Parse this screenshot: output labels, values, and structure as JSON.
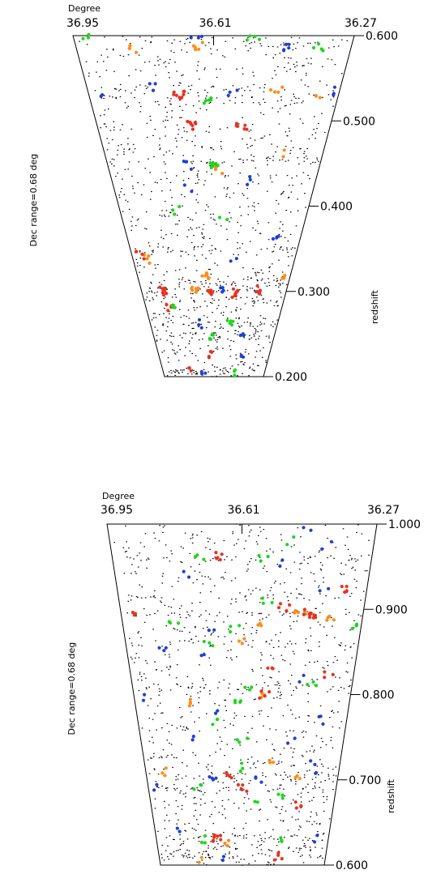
{
  "chart_data": [
    {
      "type": "scatter",
      "plot": "cone-top",
      "ra_axis_title": "Degree",
      "ra_ticks": [
        "36.95",
        "36.61",
        "36.27"
      ],
      "redshift_axis_title": "redshift",
      "dec_note": "Dec range=0.68 deg",
      "redshift_range": [
        0.2,
        0.6
      ],
      "redshift_ticks": [
        {
          "value": 0.6,
          "label": "0.600"
        },
        {
          "value": 0.5,
          "label": "0.500"
        },
        {
          "value": 0.4,
          "label": "0.400"
        },
        {
          "value": 0.3,
          "label": "0.300"
        },
        {
          "value": 0.2,
          "label": "0.200"
        }
      ],
      "series_colors": {
        "background": "#000000",
        "blue": "#1f3fd6",
        "green": "#1ed61e",
        "orange": "#ff8c1a",
        "red": "#e8321e"
      },
      "groups": [
        {
          "color": "green",
          "z": 0.597,
          "u": 0.05,
          "n": 3
        },
        {
          "color": "orange",
          "z": 0.585,
          "u": 0.2,
          "n": 4
        },
        {
          "color": "blue",
          "z": 0.596,
          "u": 0.44,
          "n": 3
        },
        {
          "color": "orange",
          "z": 0.588,
          "u": 0.44,
          "n": 5
        },
        {
          "color": "green",
          "z": 0.596,
          "u": 0.64,
          "n": 4
        },
        {
          "color": "blue",
          "z": 0.585,
          "u": 0.76,
          "n": 5
        },
        {
          "color": "green",
          "z": 0.587,
          "u": 0.88,
          "n": 4
        },
        {
          "color": "blue",
          "z": 0.54,
          "u": 0.25,
          "n": 3
        },
        {
          "color": "red",
          "z": 0.53,
          "u": 0.36,
          "n": 9
        },
        {
          "color": "green",
          "z": 0.525,
          "u": 0.48,
          "n": 5
        },
        {
          "color": "blue",
          "z": 0.532,
          "u": 0.57,
          "n": 3
        },
        {
          "color": "orange",
          "z": 0.535,
          "u": 0.75,
          "n": 4
        },
        {
          "color": "orange",
          "z": 0.53,
          "u": 0.91,
          "n": 3
        },
        {
          "color": "blue",
          "z": 0.535,
          "u": 0.97,
          "n": 3
        },
        {
          "color": "blue",
          "z": 0.527,
          "u": 0.05,
          "n": 2
        },
        {
          "color": "red",
          "z": 0.495,
          "u": 0.41,
          "n": 8
        },
        {
          "color": "red",
          "z": 0.492,
          "u": 0.62,
          "n": 6
        },
        {
          "color": "green",
          "z": 0.45,
          "u": 0.5,
          "n": 11
        },
        {
          "color": "blue",
          "z": 0.448,
          "u": 0.38,
          "n": 3
        },
        {
          "color": "orange",
          "z": 0.442,
          "u": 0.52,
          "n": 3
        },
        {
          "color": "orange",
          "z": 0.462,
          "u": 0.8,
          "n": 2
        },
        {
          "color": "blue",
          "z": 0.42,
          "u": 0.38,
          "n": 2
        },
        {
          "color": "blue",
          "z": 0.43,
          "u": 0.66,
          "n": 3
        },
        {
          "color": "green",
          "z": 0.395,
          "u": 0.3,
          "n": 3
        },
        {
          "color": "green",
          "z": 0.385,
          "u": 0.55,
          "n": 2
        },
        {
          "color": "blue",
          "z": 0.36,
          "u": 0.85,
          "n": 3
        },
        {
          "color": "orange",
          "z": 0.338,
          "u": 0.1,
          "n": 4
        },
        {
          "color": "red",
          "z": 0.342,
          "u": 0.05,
          "n": 4
        },
        {
          "color": "blue",
          "z": 0.338,
          "u": 0.62,
          "n": 2
        },
        {
          "color": "orange",
          "z": 0.318,
          "u": 0.44,
          "n": 6
        },
        {
          "color": "orange",
          "z": 0.318,
          "u": 0.94,
          "n": 3
        },
        {
          "color": "red",
          "z": 0.3,
          "u": 0.15,
          "n": 9
        },
        {
          "color": "orange",
          "z": 0.302,
          "u": 0.37,
          "n": 8
        },
        {
          "color": "red",
          "z": 0.3,
          "u": 0.47,
          "n": 6
        },
        {
          "color": "red",
          "z": 0.298,
          "u": 0.65,
          "n": 8
        },
        {
          "color": "red",
          "z": 0.302,
          "u": 0.82,
          "n": 5
        },
        {
          "color": "blue",
          "z": 0.3,
          "u": 0.57,
          "n": 4
        },
        {
          "color": "red",
          "z": 0.282,
          "u": 0.18,
          "n": 4
        },
        {
          "color": "green",
          "z": 0.285,
          "u": 0.2,
          "n": 4
        },
        {
          "color": "green",
          "z": 0.265,
          "u": 0.63,
          "n": 5
        },
        {
          "color": "blue",
          "z": 0.262,
          "u": 0.4,
          "n": 3
        },
        {
          "color": "green",
          "z": 0.248,
          "u": 0.47,
          "n": 5
        },
        {
          "color": "blue",
          "z": 0.247,
          "u": 0.72,
          "n": 3
        },
        {
          "color": "red",
          "z": 0.225,
          "u": 0.46,
          "n": 4
        },
        {
          "color": "blue",
          "z": 0.225,
          "u": 0.75,
          "n": 3
        },
        {
          "color": "red",
          "z": 0.21,
          "u": 0.25,
          "n": 3
        },
        {
          "color": "green",
          "z": 0.205,
          "u": 0.7,
          "n": 4
        },
        {
          "color": "blue",
          "z": 0.205,
          "u": 0.4,
          "n": 3
        }
      ],
      "dot_bands": [
        0.595,
        0.54,
        0.525,
        0.455,
        0.35,
        0.31,
        0.302,
        0.29,
        0.262,
        0.248,
        0.205
      ]
    },
    {
      "type": "scatter",
      "plot": "cone-bottom",
      "ra_axis_title": "Degree",
      "ra_ticks": [
        "36.95",
        "36.61",
        "36.27"
      ],
      "redshift_axis_title": "redshift",
      "dec_note": "Dec range=0.68 deg",
      "redshift_range": [
        0.6,
        1.0
      ],
      "redshift_ticks": [
        {
          "value": 1.0,
          "label": "1.000"
        },
        {
          "value": 0.9,
          "label": "0.900"
        },
        {
          "value": 0.8,
          "label": "0.800"
        },
        {
          "value": 0.7,
          "label": "0.700"
        },
        {
          "value": 0.6,
          "label": "0.600"
        }
      ],
      "series_colors": {
        "background": "#000000",
        "blue": "#1f3fd6",
        "green": "#1ed61e",
        "orange": "#ff8c1a",
        "red": "#e8321e"
      },
      "groups": [
        {
          "color": "blue",
          "z": 0.995,
          "u": 0.74,
          "n": 2
        },
        {
          "color": "green",
          "z": 0.98,
          "u": 0.68,
          "n": 2
        },
        {
          "color": "blue",
          "z": 0.975,
          "u": 0.83,
          "n": 2
        },
        {
          "color": "green",
          "z": 0.96,
          "u": 0.34,
          "n": 3
        },
        {
          "color": "red",
          "z": 0.962,
          "u": 0.41,
          "n": 5
        },
        {
          "color": "green",
          "z": 0.96,
          "u": 0.58,
          "n": 3
        },
        {
          "color": "blue",
          "z": 0.955,
          "u": 0.65,
          "n": 2
        },
        {
          "color": "blue",
          "z": 0.94,
          "u": 0.28,
          "n": 2
        },
        {
          "color": "red",
          "z": 0.922,
          "u": 0.92,
          "n": 5
        },
        {
          "color": "blue",
          "z": 0.92,
          "u": 0.83,
          "n": 2
        },
        {
          "color": "green",
          "z": 0.912,
          "u": 0.6,
          "n": 3
        },
        {
          "color": "red",
          "z": 0.902,
          "u": 0.67,
          "n": 4
        },
        {
          "color": "red",
          "z": 0.895,
          "u": 0.05,
          "n": 4
        },
        {
          "color": "orange",
          "z": 0.898,
          "u": 0.74,
          "n": 5
        },
        {
          "color": "red",
          "z": 0.895,
          "u": 0.78,
          "n": 12
        },
        {
          "color": "orange",
          "z": 0.89,
          "u": 0.87,
          "n": 4
        },
        {
          "color": "green",
          "z": 0.885,
          "u": 0.21,
          "n": 3
        },
        {
          "color": "blue",
          "z": 0.88,
          "u": 0.37,
          "n": 2
        },
        {
          "color": "green",
          "z": 0.878,
          "u": 0.47,
          "n": 3
        },
        {
          "color": "orange",
          "z": 0.885,
          "u": 0.58,
          "n": 3
        },
        {
          "color": "green",
          "z": 0.88,
          "u": 0.98,
          "n": 3
        },
        {
          "color": "green",
          "z": 0.862,
          "u": 0.35,
          "n": 3
        },
        {
          "color": "orange",
          "z": 0.865,
          "u": 0.51,
          "n": 3
        },
        {
          "color": "blue",
          "z": 0.85,
          "u": 0.16,
          "n": 3
        },
        {
          "color": "blue",
          "z": 0.85,
          "u": 0.32,
          "n": 2
        },
        {
          "color": "red",
          "z": 0.835,
          "u": 0.63,
          "n": 3
        },
        {
          "color": "red",
          "z": 0.825,
          "u": 0.89,
          "n": 3
        },
        {
          "color": "blue",
          "z": 0.818,
          "u": 0.78,
          "n": 2
        },
        {
          "color": "green",
          "z": 0.812,
          "u": 0.82,
          "n": 3
        },
        {
          "color": "green",
          "z": 0.81,
          "u": 0.52,
          "n": 3
        },
        {
          "color": "orange",
          "z": 0.8,
          "u": 0.58,
          "n": 4
        },
        {
          "color": "red",
          "z": 0.8,
          "u": 0.6,
          "n": 4
        },
        {
          "color": "green",
          "z": 0.79,
          "u": 0.48,
          "n": 4
        },
        {
          "color": "blue",
          "z": 0.795,
          "u": 0.05,
          "n": 2
        },
        {
          "color": "orange",
          "z": 0.79,
          "u": 0.26,
          "n": 4
        },
        {
          "color": "blue",
          "z": 0.78,
          "u": 0.37,
          "n": 2
        },
        {
          "color": "blue",
          "z": 0.77,
          "u": 0.88,
          "n": 3
        },
        {
          "color": "green",
          "z": 0.77,
          "u": 0.37,
          "n": 3
        },
        {
          "color": "blue",
          "z": 0.75,
          "u": 0.25,
          "n": 2
        },
        {
          "color": "green",
          "z": 0.748,
          "u": 0.5,
          "n": 3
        },
        {
          "color": "blue",
          "z": 0.745,
          "u": 0.74,
          "n": 2
        },
        {
          "color": "orange",
          "z": 0.72,
          "u": 0.64,
          "n": 3
        },
        {
          "color": "green",
          "z": 0.715,
          "u": 0.5,
          "n": 3
        },
        {
          "color": "blue",
          "z": 0.72,
          "u": 0.87,
          "n": 2
        },
        {
          "color": "orange",
          "z": 0.71,
          "u": 0.1,
          "n": 3
        },
        {
          "color": "blue",
          "z": 0.705,
          "u": 0.35,
          "n": 4
        },
        {
          "color": "red",
          "z": 0.705,
          "u": 0.44,
          "n": 5
        },
        {
          "color": "blue",
          "z": 0.7,
          "u": 0.58,
          "n": 3
        },
        {
          "color": "orange",
          "z": 0.705,
          "u": 0.78,
          "n": 3
        },
        {
          "color": "blue",
          "z": 0.705,
          "u": 0.88,
          "n": 2
        },
        {
          "color": "red",
          "z": 0.69,
          "u": 0.5,
          "n": 4
        },
        {
          "color": "green",
          "z": 0.69,
          "u": 0.26,
          "n": 3
        },
        {
          "color": "green",
          "z": 0.675,
          "u": 0.58,
          "n": 2
        },
        {
          "color": "red",
          "z": 0.67,
          "u": 0.8,
          "n": 4
        },
        {
          "color": "green",
          "z": 0.68,
          "u": 0.7,
          "n": 3
        },
        {
          "color": "blue",
          "z": 0.69,
          "u": 0.03,
          "n": 2
        },
        {
          "color": "blue",
          "z": 0.64,
          "u": 0.13,
          "n": 2
        },
        {
          "color": "green",
          "z": 0.63,
          "u": 0.26,
          "n": 3
        },
        {
          "color": "red",
          "z": 0.632,
          "u": 0.35,
          "n": 7
        },
        {
          "color": "orange",
          "z": 0.625,
          "u": 0.42,
          "n": 3
        },
        {
          "color": "green",
          "z": 0.63,
          "u": 0.72,
          "n": 3
        },
        {
          "color": "blue",
          "z": 0.63,
          "u": 0.92,
          "n": 2
        },
        {
          "color": "red",
          "z": 0.61,
          "u": 0.72,
          "n": 4
        },
        {
          "color": "orange",
          "z": 0.606,
          "u": 0.24,
          "n": 2
        },
        {
          "color": "blue",
          "z": 0.606,
          "u": 0.38,
          "n": 2
        }
      ],
      "dot_bands": [
        0.958,
        0.915,
        0.895,
        0.86,
        0.81,
        0.705,
        0.69,
        0.632,
        0.62,
        0.61
      ]
    }
  ]
}
